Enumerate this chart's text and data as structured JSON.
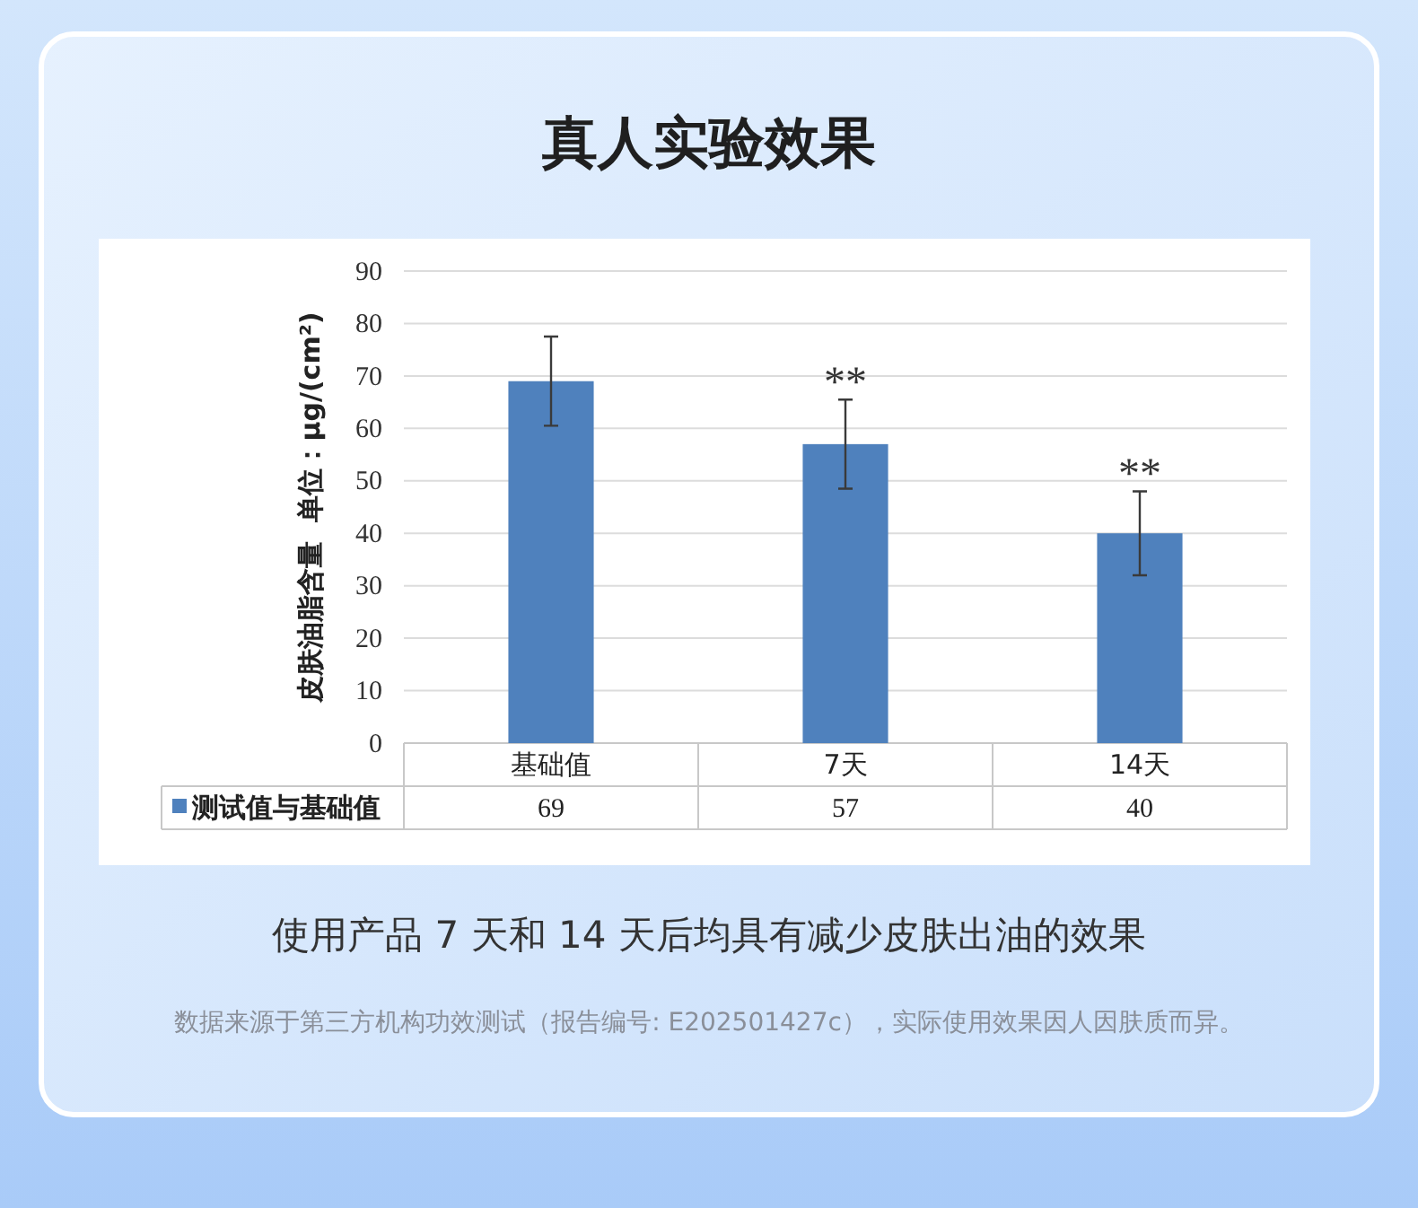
{
  "chart_data": {
    "type": "bar",
    "title": "真人实验效果",
    "ylabel": "皮肤油脂含量  单位：μg/(cm²)",
    "categories": [
      "基础值",
      "7天",
      "14天"
    ],
    "series": [
      {
        "name": "测试值与基础值",
        "color": "#4f81bd",
        "values": [
          69,
          57,
          40
        ],
        "errors": [
          8.5,
          8.5,
          8
        ]
      }
    ],
    "ylim": [
      0,
      90
    ],
    "yticks": [
      0,
      10,
      20,
      30,
      40,
      50,
      60,
      70,
      80,
      90
    ],
    "grid": "y",
    "legend": "bottom",
    "data_labels": true,
    "annotations": [
      "**",
      "**",
      "使用产品 7 天和 14 天后均具有减少皮肤出油的效果",
      "数据来源于第三方机构功效测试（报告编号: E202501427c），实际使用效果因人因肤质而异。"
    ]
  }
}
